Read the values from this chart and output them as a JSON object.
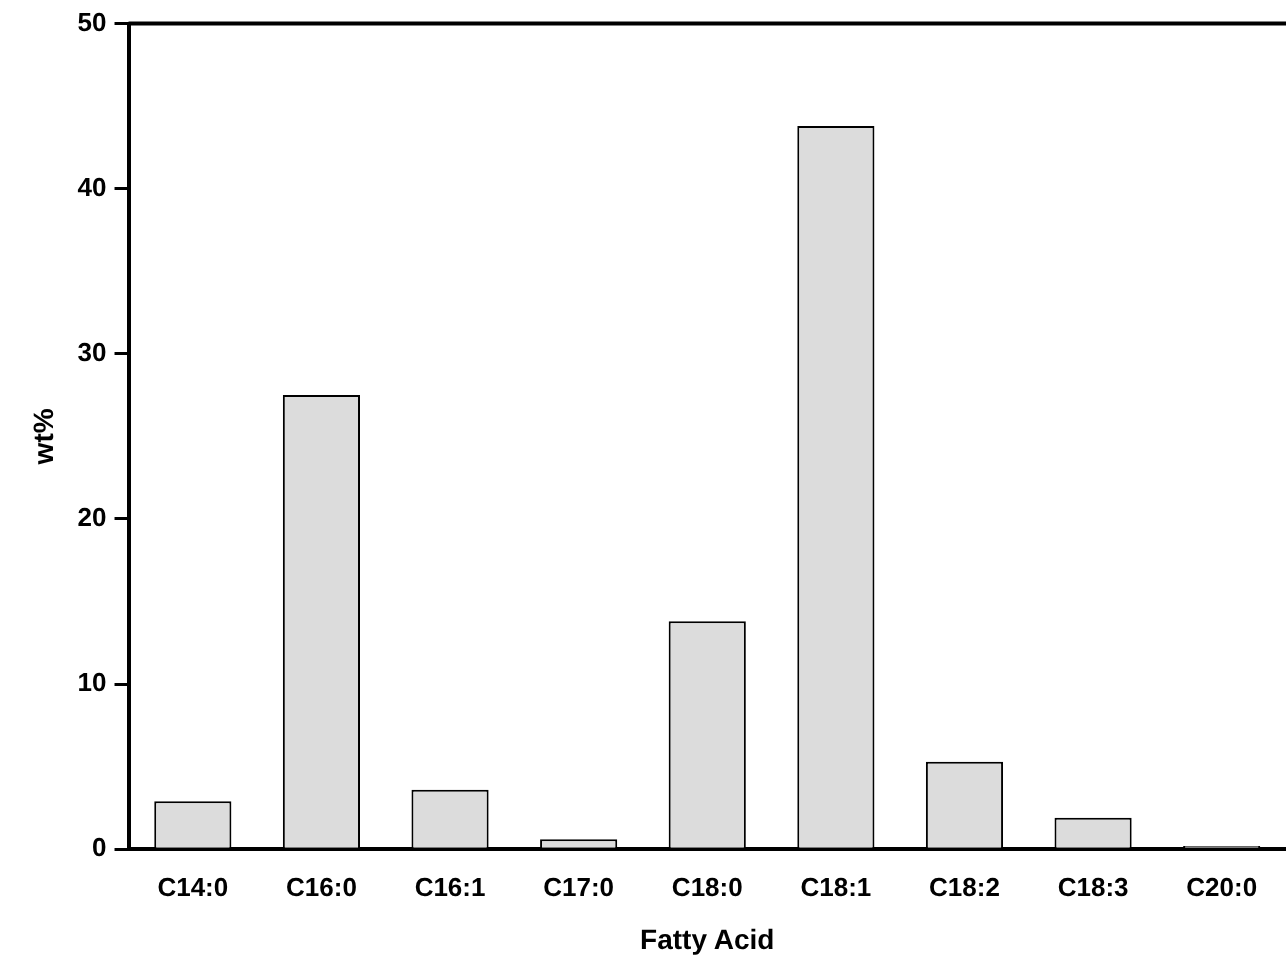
{
  "chart_data": {
    "type": "bar",
    "xlabel": "Fatty Acid",
    "ylabel": "wt%",
    "categories": [
      "C14:0",
      "C16:0",
      "C16:1",
      "C17:0",
      "C18:0",
      "C18:1",
      "C18:2",
      "C18:3",
      "C20:0"
    ],
    "values": [
      2.9,
      27.5,
      3.6,
      0.6,
      13.8,
      43.8,
      5.3,
      1.9,
      0.2
    ],
    "color": "#dcdcdc",
    "ylim": [
      0,
      50
    ],
    "yticks": [
      0,
      10,
      20,
      30,
      40,
      50
    ],
    "grid": false,
    "legend": false
  }
}
